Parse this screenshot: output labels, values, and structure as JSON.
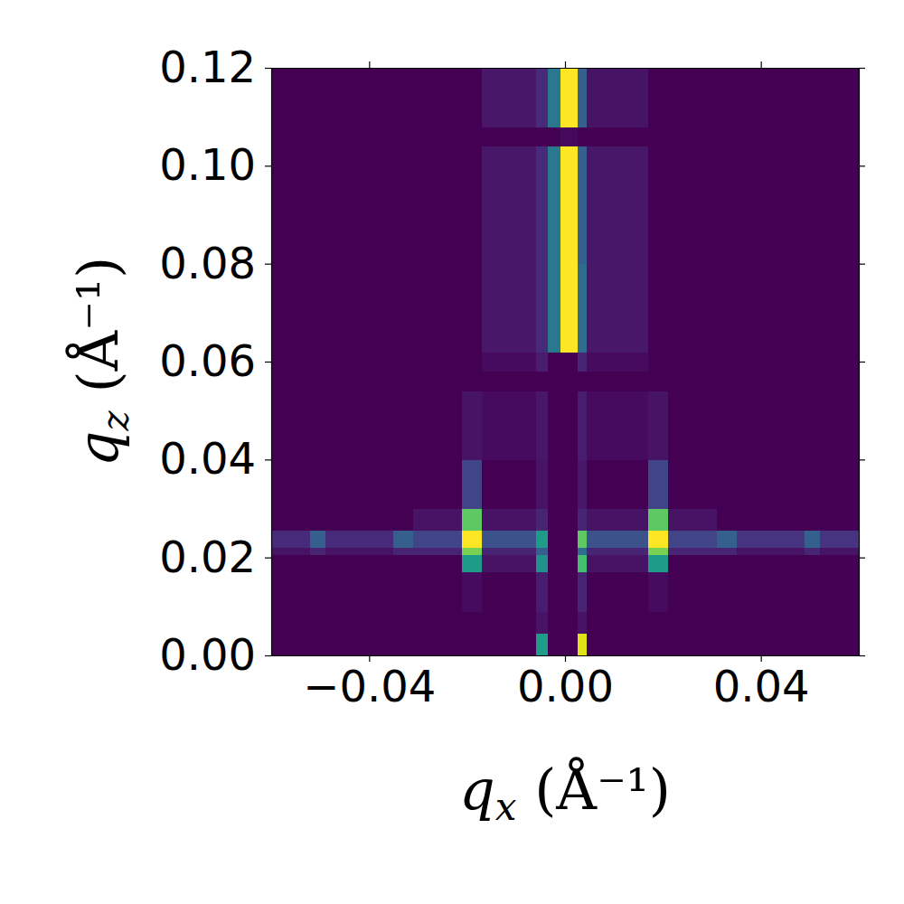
{
  "chart_data": {
    "type": "heatmap",
    "xlabel": "qx (Å⁻¹)",
    "ylabel": "qz (Å⁻¹)",
    "color": "viridis",
    "xlim": [
      -0.06,
      0.06
    ],
    "ylim": [
      0,
      0.12
    ],
    "xticks": [
      {
        "value": -0.04,
        "label": "−0.04"
      },
      {
        "value": 0,
        "label": "0.00"
      },
      0.04
    ],
    "yticks": [
      {
        "value": 0,
        "label": "0.00"
      },
      0.02,
      0.04,
      0.06,
      0.08,
      {
        "value": 0.1,
        "label": "0.10"
      },
      0.12
    ],
    "x_edges": [
      -0.06,
      -0.052,
      -0.049,
      -0.035,
      -0.031,
      -0.021,
      -0.017,
      -0.006,
      -0.0035,
      -0.001,
      0.0025,
      0.0045,
      0.017,
      0.021,
      0.031,
      0.035,
      0.049,
      0.052,
      0.06
    ],
    "y_edges": [
      0,
      0.0045,
      0.009,
      0.017,
      0.0205,
      0.022,
      0.0255,
      0.03,
      0.04,
      0.054,
      0.058,
      0.062,
      0.08,
      0.104,
      0.108,
      0.12
    ],
    "values": [
      [
        0,
        0,
        0,
        0,
        0,
        0,
        0,
        0.55,
        0,
        0,
        0.95,
        0,
        0,
        0,
        0,
        0,
        0,
        0
      ],
      [
        0,
        0,
        0,
        0,
        0,
        0,
        0,
        0.05,
        0,
        0,
        0.05,
        0,
        0,
        0,
        0,
        0,
        0,
        0
      ],
      [
        0,
        0,
        0,
        0,
        0,
        0.03,
        0,
        0.08,
        0,
        0,
        0.1,
        0,
        0.03,
        0,
        0,
        0,
        0,
        0
      ],
      [
        0,
        0,
        0,
        0,
        0,
        0.55,
        0.05,
        0.5,
        0,
        0,
        0.7,
        0.05,
        0.55,
        0,
        0,
        0,
        0,
        0
      ],
      [
        0.05,
        0.1,
        0.05,
        0.1,
        0.1,
        0.8,
        0.1,
        0.3,
        0,
        0,
        0.35,
        0.1,
        0.8,
        0.1,
        0.1,
        0.05,
        0.1,
        0.05
      ],
      [
        0.12,
        0.3,
        0.12,
        0.3,
        0.2,
        1.0,
        0.25,
        0.55,
        0,
        0,
        0.75,
        0.25,
        1.0,
        0.2,
        0.3,
        0.15,
        0.3,
        0.15
      ],
      [
        0,
        0,
        0,
        0,
        0.05,
        0.75,
        0.05,
        0.1,
        0,
        0,
        0.1,
        0.05,
        0.75,
        0.05,
        0,
        0,
        0,
        0
      ],
      [
        0,
        0,
        0,
        0,
        0,
        0.2,
        0,
        0.05,
        0,
        0,
        0.06,
        0,
        0.2,
        0,
        0,
        0,
        0,
        0
      ],
      [
        0,
        0,
        0,
        0,
        0,
        0.05,
        0.03,
        0.06,
        0,
        0,
        0.08,
        0.03,
        0.05,
        0,
        0,
        0,
        0,
        0
      ],
      [
        0,
        0,
        0,
        0,
        0,
        0,
        0,
        0,
        0,
        0,
        0,
        0,
        0,
        0,
        0,
        0,
        0,
        0
      ],
      [
        0,
        0,
        0,
        0,
        0,
        0,
        0.03,
        0.08,
        0,
        0,
        0.1,
        0.03,
        0,
        0,
        0,
        0,
        0,
        0
      ],
      [
        0,
        0,
        0,
        0,
        0,
        0,
        0.06,
        0.12,
        0.4,
        1.0,
        0.35,
        0.06,
        0,
        0,
        0,
        0,
        0,
        0
      ],
      [
        0,
        0,
        0,
        0,
        0,
        0,
        0.06,
        0.12,
        0.4,
        1.0,
        0.3,
        0.06,
        0,
        0,
        0,
        0,
        0,
        0
      ],
      [
        0,
        0,
        0,
        0,
        0,
        0,
        0,
        0,
        0,
        0.02,
        0,
        0,
        0,
        0,
        0,
        0,
        0,
        0
      ],
      [
        0,
        0,
        0,
        0,
        0,
        0,
        0.06,
        0.12,
        0.4,
        1.0,
        0.3,
        0.05,
        0,
        0,
        0,
        0,
        0,
        0
      ]
    ]
  }
}
